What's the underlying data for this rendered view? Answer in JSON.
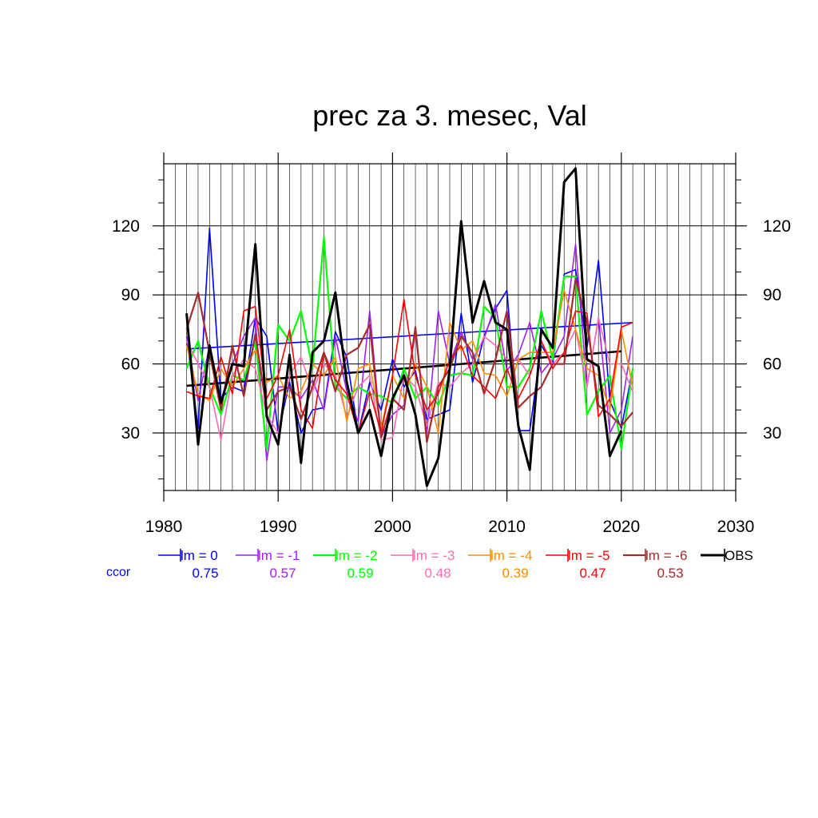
{
  "chart_data": {
    "type": "line",
    "title": "prec za 3. mesec, Val",
    "xlabel": "",
    "ylabel": "",
    "xlim": [
      1980,
      2030
    ],
    "ylim": [
      5,
      147
    ],
    "x_ticks": [
      1980,
      1990,
      2000,
      2010,
      2020,
      2030
    ],
    "y_ticks": [
      30,
      60,
      90,
      120
    ],
    "grid": true,
    "years": [
      1982,
      1983,
      1984,
      1985,
      1986,
      1987,
      1988,
      1989,
      1990,
      1991,
      1992,
      1993,
      1994,
      1995,
      1996,
      1997,
      1998,
      1999,
      2000,
      2001,
      2002,
      2003,
      2004,
      2005,
      2006,
      2007,
      2008,
      2009,
      2010,
      2011,
      2012,
      2013,
      2014,
      2015,
      2016,
      2017,
      2018,
      2019,
      2020,
      2021
    ],
    "series": [
      {
        "name": "lm = 0",
        "color": "#0000ff",
        "width": 1.6,
        "values": [
          72,
          32,
          119,
          45,
          50,
          48,
          80,
          72,
          30,
          52,
          30,
          40,
          41,
          74,
          63,
          30,
          52,
          40,
          62,
          50,
          57,
          36,
          38,
          40,
          82,
          52,
          72,
          84,
          92,
          31,
          31,
          68,
          60,
          99,
          101,
          67,
          105,
          44,
          32,
          58
        ],
        "trend": [
          [
            1982,
            66.5
          ],
          [
            2021,
            78
          ]
        ]
      },
      {
        "name": "lm = -1",
        "color": "#a020f0",
        "width": 1.6,
        "values": [
          72,
          44,
          68,
          44,
          60,
          72,
          80,
          18,
          50,
          50,
          45,
          53,
          40,
          72,
          48,
          35,
          83,
          28,
          38,
          42,
          74,
          30,
          83,
          60,
          74,
          62,
          71,
          86,
          57,
          64,
          78,
          56,
          62,
          72,
          112,
          50,
          80,
          30,
          40,
          72
        ],
        "trend": null
      },
      {
        "name": "lm = -2",
        "color": "#00ff00",
        "width": 2.2,
        "values": [
          58,
          70,
          50,
          38,
          55,
          53,
          70,
          23,
          77,
          70,
          83,
          58,
          115,
          50,
          45,
          50,
          47,
          46,
          43,
          58,
          45,
          50,
          42,
          55,
          56,
          55,
          85,
          80,
          50,
          50,
          58,
          83,
          62,
          98,
          98,
          38,
          48,
          55,
          23,
          58
        ],
        "trend": null
      },
      {
        "name": "lm = -3",
        "color": "#ff69b4",
        "width": 1.6,
        "values": [
          70,
          60,
          50,
          27,
          55,
          62,
          58,
          38,
          30,
          55,
          63,
          48,
          60,
          55,
          37,
          50,
          55,
          27,
          28,
          55,
          50,
          33,
          52,
          50,
          56,
          60,
          72,
          68,
          62,
          62,
          55,
          70,
          60,
          65,
          75,
          50,
          80,
          60,
          60,
          48
        ],
        "trend": null
      },
      {
        "name": "lm = -4",
        "color": "#ff8c00",
        "width": 1.6,
        "values": [
          68,
          47,
          44,
          58,
          50,
          58,
          66,
          52,
          55,
          45,
          48,
          60,
          55,
          63,
          35,
          58,
          60,
          32,
          55,
          45,
          60,
          50,
          30,
          78,
          66,
          70,
          56,
          55,
          46,
          62,
          65,
          65,
          65,
          92,
          75,
          58,
          55,
          40,
          75,
          50
        ],
        "trend": null
      },
      {
        "name": "lm = -5",
        "color": "#ff0000",
        "width": 1.6,
        "values": [
          48,
          46,
          45,
          63,
          47,
          83,
          85,
          45,
          55,
          75,
          40,
          32,
          65,
          53,
          47,
          30,
          48,
          30,
          55,
          88,
          55,
          40,
          47,
          62,
          68,
          55,
          50,
          45,
          58,
          45,
          55,
          70,
          58,
          65,
          83,
          82,
          37,
          45,
          76,
          78
        ],
        "trend": null
      },
      {
        "name": "lm = -6",
        "color": "#a52a2a",
        "width": 2.2,
        "values": [
          75,
          91,
          65,
          40,
          68,
          46,
          73,
          40,
          48,
          50,
          36,
          50,
          65,
          48,
          64,
          67,
          77,
          28,
          45,
          40,
          76,
          26,
          50,
          58,
          72,
          65,
          47,
          62,
          83,
          41,
          46,
          50,
          60,
          60,
          97,
          78,
          42,
          38,
          33,
          39
        ],
        "trend": null
      },
      {
        "name": "OBS",
        "color": "#000000",
        "width": 3,
        "values": [
          82,
          25,
          68,
          43,
          60,
          59,
          112,
          37,
          25,
          64,
          17,
          65,
          70,
          91,
          52,
          30,
          40,
          20,
          45,
          55,
          38,
          7,
          19,
          58,
          122,
          78,
          96,
          78,
          75,
          33,
          14,
          75,
          67,
          139,
          145,
          62,
          59,
          20,
          31,
          null
        ],
        "trend": [
          [
            1982,
            50.5
          ],
          [
            2020,
            65.5
          ]
        ]
      }
    ],
    "legend_placement": "below-plot",
    "ccor_label": "ccor",
    "ccor": [
      "0.75",
      "0.57",
      "0.59",
      "0.48",
      "0.39",
      "0.47",
      "0.53"
    ]
  }
}
